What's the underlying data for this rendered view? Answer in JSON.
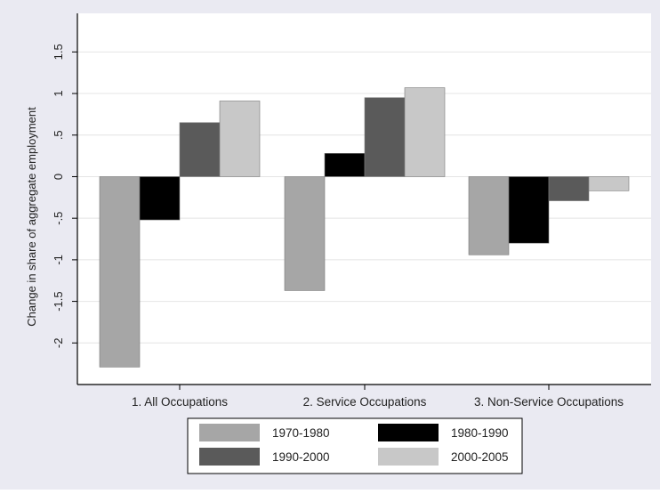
{
  "chart_data": {
    "type": "bar",
    "title": "",
    "xlabel": "",
    "ylabel": "Change in share of aggregate employment",
    "ylim": [
      -2.5,
      1.75
    ],
    "yticks": [
      -2,
      -1.5,
      -1,
      -0.5,
      0,
      0.5,
      1,
      1.5
    ],
    "ytick_labels": [
      "-2",
      "-1.5",
      "-1",
      "-.5",
      "0",
      ".5",
      "1",
      "1.5"
    ],
    "grid": true,
    "legend_position": "bottom",
    "categories": [
      "1. All Occupations",
      "2. Service Occupations",
      "3. Non-Service Occupations"
    ],
    "series": [
      {
        "name": "1970-1980",
        "color": "#a6a6a6",
        "values": [
          -2.29,
          -1.37,
          -0.94
        ]
      },
      {
        "name": "1980-1990",
        "color": "#000000",
        "values": [
          -0.52,
          0.28,
          -0.8
        ]
      },
      {
        "name": "1990-2000",
        "color": "#5a5a5a",
        "values": [
          0.65,
          0.95,
          -0.29
        ]
      },
      {
        "name": "2000-2005",
        "color": "#c8c8c8",
        "values": [
          0.91,
          1.07,
          -0.17
        ]
      }
    ],
    "colors": {
      "outer_background": "#eaeaf2",
      "plot_background": "#ffffff",
      "gridline": "#e4e4e4",
      "axis": "#000000"
    }
  }
}
